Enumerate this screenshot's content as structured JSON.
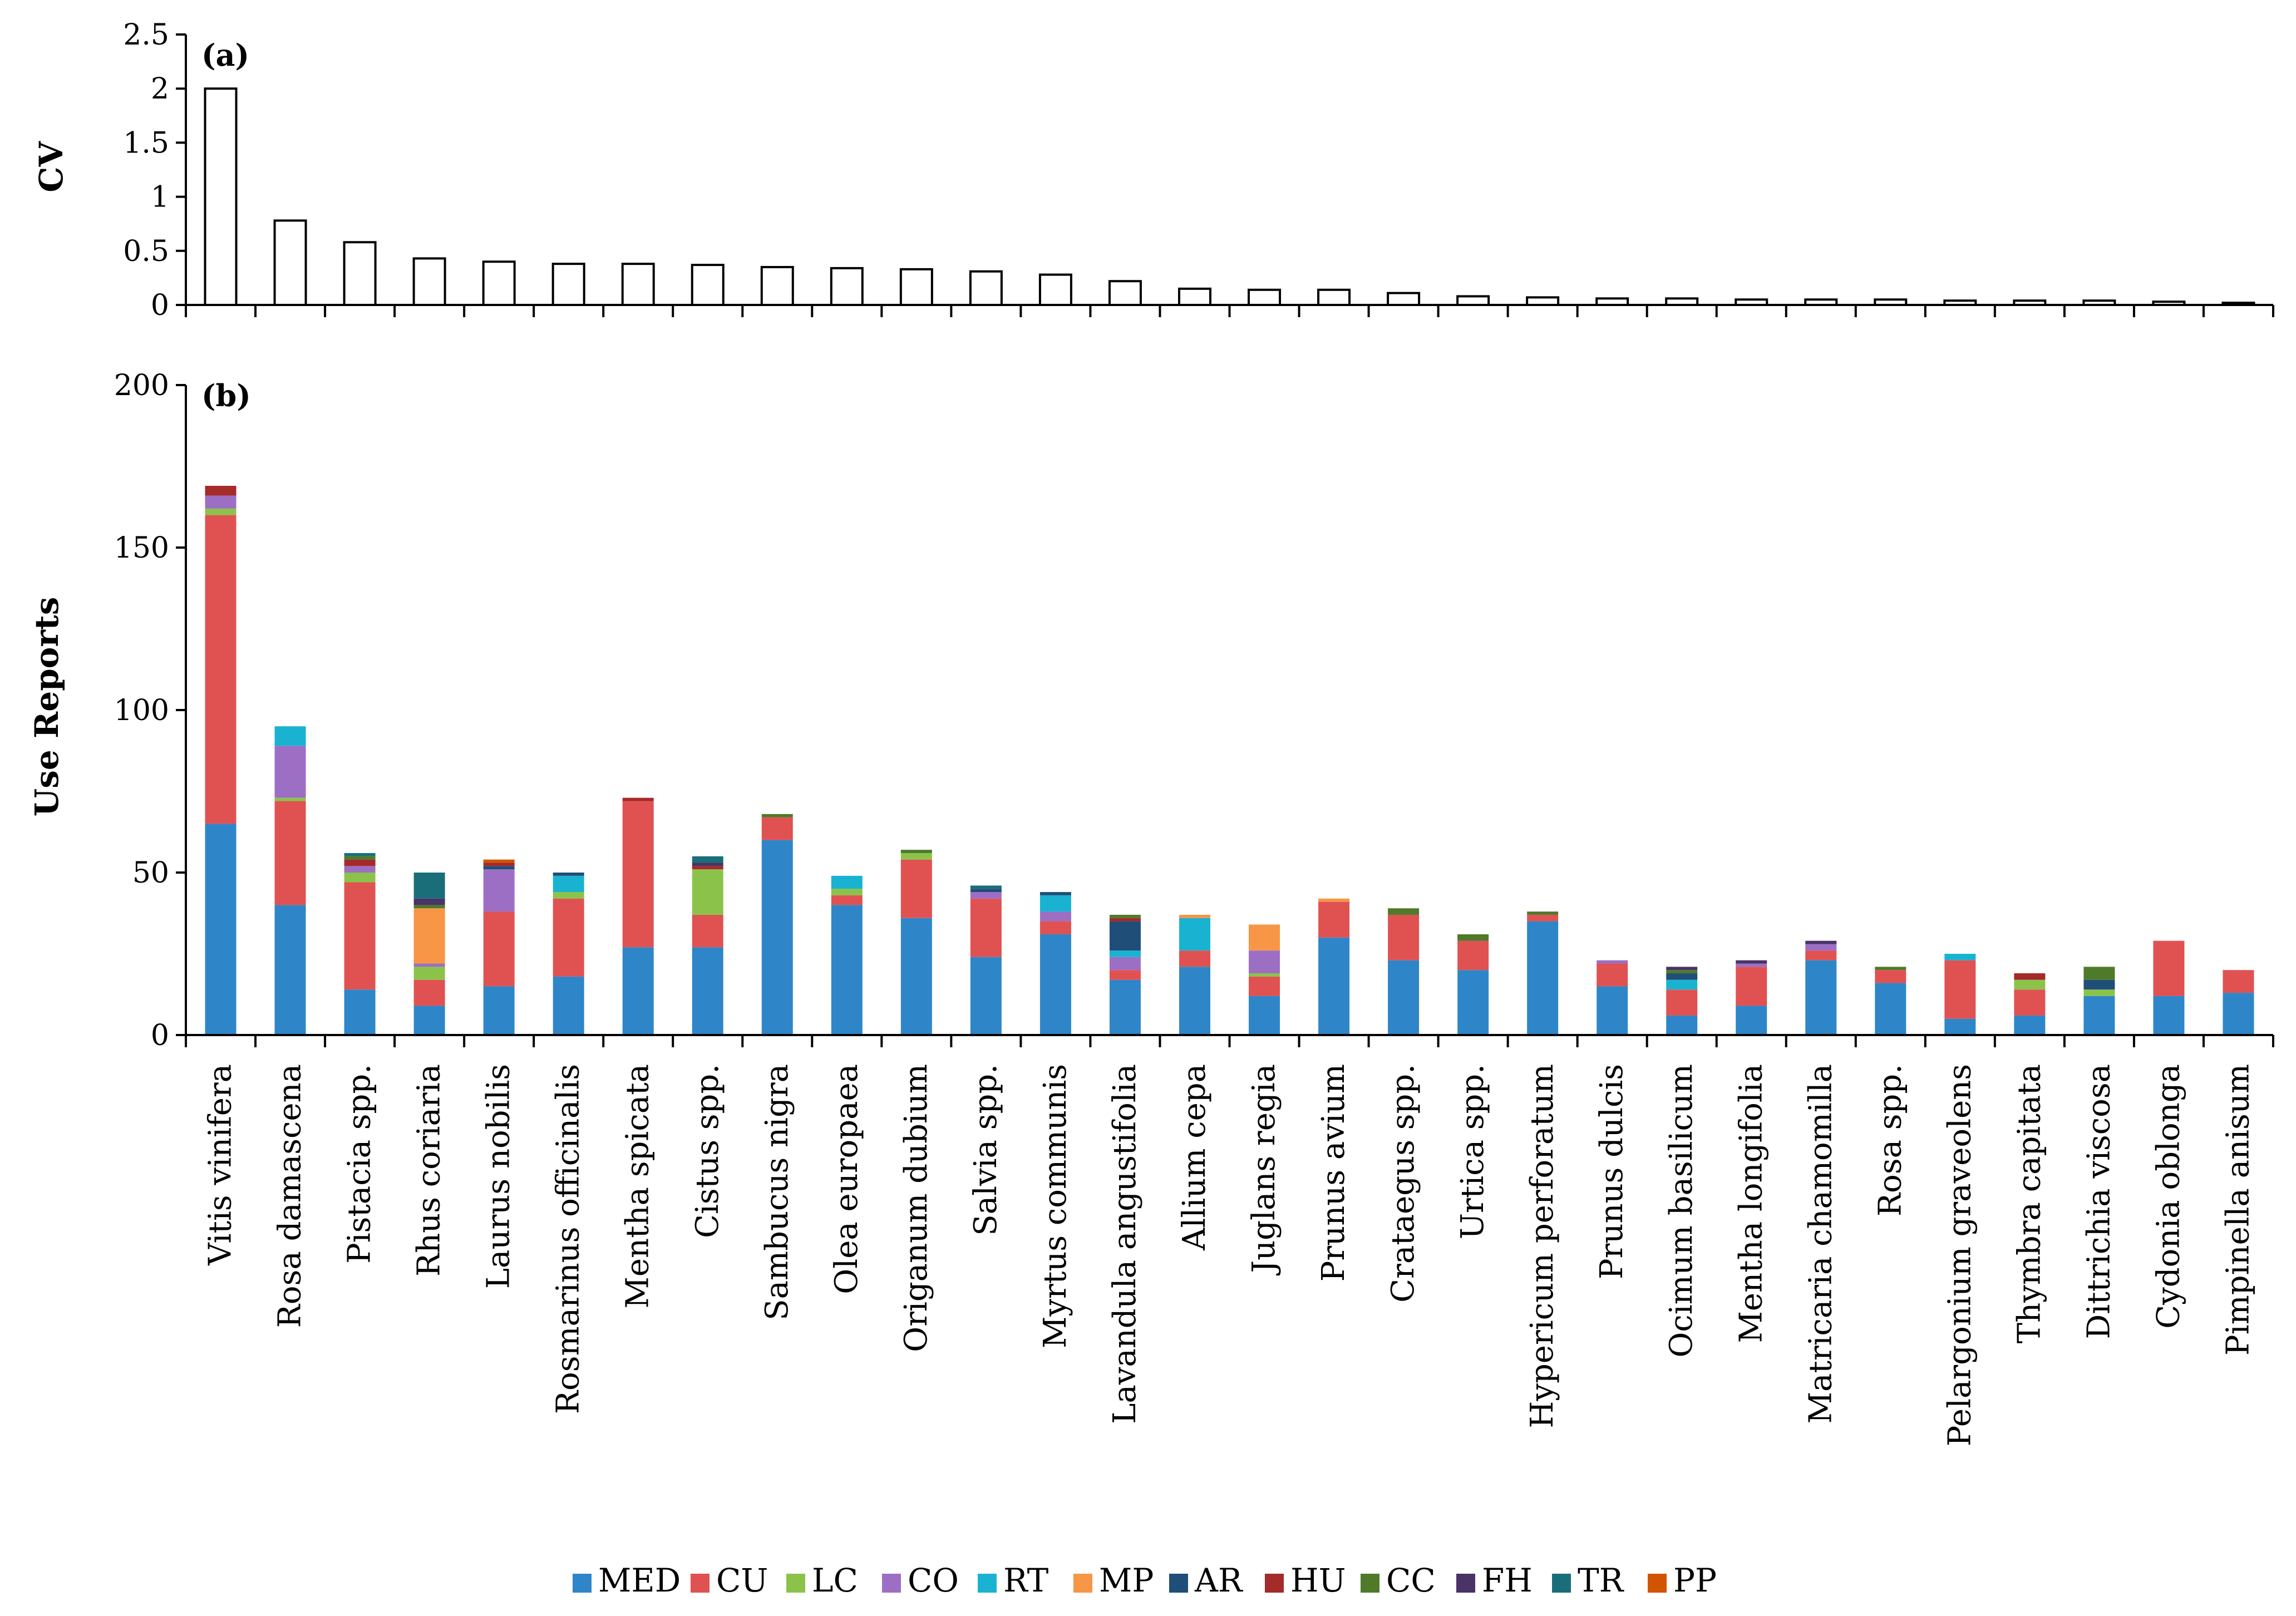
{
  "chart_data": [
    {
      "type": "bar",
      "panel_label": "(a)",
      "title": "",
      "xlabel": "",
      "ylabel": "CV",
      "ylim": [
        0,
        2.5
      ],
      "yticks": [
        "0",
        "0.5",
        "1",
        "1.5",
        "2",
        "2.5"
      ],
      "categories": [
        "Vitis vinifera",
        "Rosa damascena",
        "Pistacia spp.",
        "Rhus coriaria",
        "Laurus nobilis",
        "Rosmarinus officinalis",
        "Mentha spicata",
        "Cistus spp.",
        "Sambucus nigra",
        "Olea europaea",
        "Origanum dubium",
        "Salvia spp.",
        "Myrtus communis",
        "Lavandula angustifolia",
        "Allium cepa",
        "Juglans regia",
        "Prunus avium",
        "Crataegus spp.",
        "Urtica spp.",
        "Hypericum perforatum",
        "Prunus dulcis",
        "Ocimum basilicum",
        "Mentha longifolia",
        "Matricaria chamomilla",
        "Rosa spp.",
        "Pelargonium graveolens",
        "Thymbra capitata",
        "Dittrichia viscosa",
        "Cydonia oblonga",
        "Pimpinella anisum"
      ],
      "values": [
        2.0,
        0.78,
        0.58,
        0.43,
        0.4,
        0.38,
        0.38,
        0.37,
        0.35,
        0.34,
        0.33,
        0.31,
        0.28,
        0.22,
        0.15,
        0.14,
        0.14,
        0.11,
        0.08,
        0.07,
        0.06,
        0.06,
        0.05,
        0.05,
        0.05,
        0.04,
        0.04,
        0.04,
        0.03,
        0.02
      ],
      "grid": false,
      "bar_fill": "#ffffff",
      "bar_edge": "#000000"
    },
    {
      "type": "bar",
      "stacked": true,
      "panel_label": "(b)",
      "title": "",
      "xlabel": "",
      "ylabel": "Use Reports",
      "ylim": [
        0,
        200
      ],
      "yticks": [
        "0",
        "50",
        "100",
        "150",
        "200"
      ],
      "grid": false,
      "legend_position": "bottom",
      "categories": [
        "Vitis vinifera",
        "Rosa damascena",
        "Pistacia spp.",
        "Rhus coriaria",
        "Laurus nobilis",
        "Rosmarinus officinalis",
        "Mentha spicata",
        "Cistus spp.",
        "Sambucus nigra",
        "Olea europaea",
        "Origanum dubium",
        "Salvia spp.",
        "Myrtus communis",
        "Lavandula angustifolia",
        "Allium cepa",
        "Juglans regia",
        "Prunus avium",
        "Crataegus spp.",
        "Urtica spp.",
        "Hypericum perforatum",
        "Prunus dulcis",
        "Ocimum basilicum",
        "Mentha longifolia",
        "Matricaria chamomilla",
        "Rosa spp.",
        "Pelargonium graveolens",
        "Thymbra capitata",
        "Dittrichia viscosa",
        "Cydonia oblonga",
        "Pimpinella anisum"
      ],
      "series": [
        {
          "name": "MED",
          "color": "#2e86c8",
          "values": [
            65,
            40,
            14,
            9,
            15,
            18,
            27,
            27,
            60,
            40,
            36,
            24,
            31,
            17,
            21,
            12,
            30,
            23,
            20,
            35,
            15,
            6,
            9,
            23,
            16,
            5,
            6,
            12,
            12,
            13
          ]
        },
        {
          "name": "CU",
          "color": "#e05252",
          "values": [
            95,
            32,
            33,
            8,
            23,
            24,
            45,
            10,
            7,
            3,
            18,
            18,
            4,
            3,
            5,
            6,
            11,
            14,
            9,
            2,
            7,
            8,
            12,
            3,
            4,
            18,
            8,
            0,
            17,
            7
          ]
        },
        {
          "name": "LC",
          "color": "#8bc34a",
          "values": [
            2,
            1,
            3,
            4,
            0,
            2,
            0,
            14,
            0,
            2,
            2,
            0,
            0,
            0,
            0,
            1,
            0,
            0,
            0,
            0,
            0,
            0,
            0,
            0,
            0,
            0,
            3,
            2,
            0,
            0
          ]
        },
        {
          "name": "CO",
          "color": "#9c6fc4",
          "values": [
            4,
            16,
            2,
            1,
            13,
            0,
            0,
            0,
            0,
            0,
            0,
            2,
            3,
            4,
            0,
            7,
            0,
            0,
            0,
            0,
            1,
            0,
            1,
            2,
            0,
            0,
            0,
            0,
            0,
            0
          ]
        },
        {
          "name": "RT",
          "color": "#19b3d1",
          "values": [
            0,
            6,
            0,
            0,
            0,
            5,
            0,
            0,
            0,
            4,
            0,
            0,
            5,
            2,
            10,
            0,
            0,
            0,
            0,
            0,
            0,
            3,
            0,
            0,
            0,
            2,
            0,
            0,
            0,
            0
          ]
        },
        {
          "name": "MP",
          "color": "#f79646",
          "values": [
            0,
            0,
            0,
            17,
            0,
            0,
            0,
            0,
            0,
            0,
            0,
            0,
            0,
            0,
            1,
            8,
            1,
            0,
            0,
            0,
            0,
            0,
            0,
            0,
            0,
            0,
            0,
            0,
            0,
            0
          ]
        },
        {
          "name": "AR",
          "color": "#1f4e79",
          "values": [
            0,
            0,
            0,
            0,
            1,
            1,
            0,
            0,
            0,
            0,
            0,
            1,
            1,
            9,
            0,
            0,
            0,
            0,
            0,
            0,
            0,
            2,
            0,
            0,
            0,
            0,
            0,
            3,
            0,
            0
          ]
        },
        {
          "name": "HU",
          "color": "#a52a2a",
          "values": [
            3,
            0,
            2,
            0,
            1,
            0,
            1,
            1,
            0,
            0,
            0,
            0,
            0,
            1,
            0,
            0,
            0,
            0,
            0,
            0,
            0,
            0,
            0,
            0,
            0,
            0,
            2,
            0,
            0,
            0
          ]
        },
        {
          "name": "CC",
          "color": "#4f7a2a",
          "values": [
            0,
            0,
            1,
            1,
            0,
            0,
            0,
            0,
            1,
            0,
            1,
            0,
            0,
            1,
            0,
            0,
            0,
            2,
            2,
            1,
            0,
            1,
            0,
            0,
            1,
            0,
            0,
            4,
            0,
            0
          ]
        },
        {
          "name": "FH",
          "color": "#4a3366",
          "values": [
            0,
            0,
            0,
            2,
            0,
            0,
            0,
            1,
            0,
            0,
            0,
            0,
            0,
            0,
            0,
            0,
            0,
            0,
            0,
            0,
            0,
            1,
            1,
            1,
            0,
            0,
            0,
            0,
            0,
            0
          ]
        },
        {
          "name": "TR",
          "color": "#1a6e7a",
          "values": [
            0,
            0,
            1,
            8,
            0,
            0,
            0,
            2,
            0,
            0,
            0,
            1,
            0,
            0,
            0,
            0,
            0,
            0,
            0,
            0,
            0,
            0,
            0,
            0,
            0,
            0,
            0,
            0,
            0,
            0
          ]
        },
        {
          "name": "PP",
          "color": "#d35400",
          "values": [
            0,
            0,
            0,
            0,
            1,
            0,
            0,
            0,
            0,
            0,
            0,
            0,
            0,
            0,
            0,
            0,
            0,
            0,
            0,
            0,
            0,
            0,
            0,
            0,
            0,
            0,
            0,
            0,
            0,
            0
          ]
        }
      ]
    }
  ]
}
